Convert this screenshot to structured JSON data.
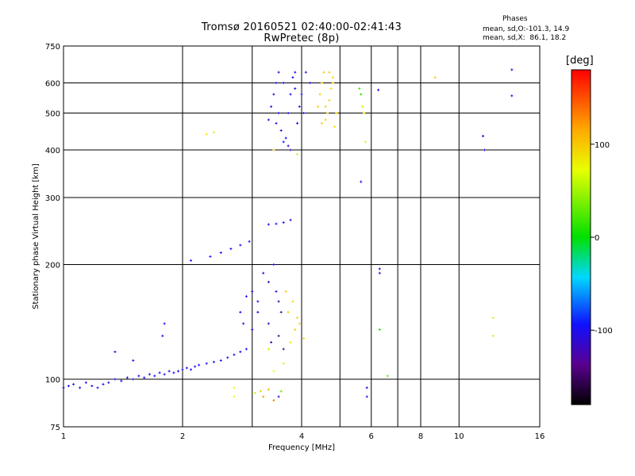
{
  "header": {
    "title_line1": "Tromsø 20160521 02:40:00-02:41:43",
    "title_line2": "RwPretec (8p)",
    "phases_heading": "Phases",
    "phases_o": "mean, sd,O:-101.3, 14.9",
    "phases_x": "mean, sd,X:  86.1, 18.2"
  },
  "colorbar": {
    "unit_label": "[deg]",
    "tick_labels": [
      "100",
      "0",
      "-100"
    ],
    "tick_values": [
      100,
      0,
      -100
    ],
    "range": [
      -180,
      180
    ],
    "colormap": "rainbow: black → purple → blue → cyan → green → yellow → orange → red"
  },
  "chart_data": {
    "type": "scatter",
    "xlabel": "Frequency [MHz]",
    "ylabel": "Stationary phase Virtual Height [km]",
    "xscale": "log",
    "yscale": "log",
    "xlim": [
      1,
      16
    ],
    "ylim": [
      75,
      750
    ],
    "xticks": [
      1,
      2,
      4,
      6,
      8,
      10,
      16
    ],
    "xtick_labels": [
      "1",
      "2",
      "4",
      "6",
      "8",
      "10",
      "16"
    ],
    "yticks": [
      75,
      100,
      200,
      300,
      400,
      500,
      600,
      750
    ],
    "ytick_labels": [
      "75",
      "100",
      "200",
      "300",
      "400",
      "500",
      "600",
      "750"
    ],
    "grid": true,
    "series": [
      {
        "points": [
          [
            1.0,
            95,
            -100
          ],
          [
            1.03,
            96,
            -100
          ],
          [
            1.06,
            97,
            -100
          ],
          [
            1.1,
            95,
            -100
          ],
          [
            1.14,
            98,
            -100
          ],
          [
            1.18,
            96,
            -100
          ],
          [
            1.22,
            95,
            -100
          ],
          [
            1.26,
            97,
            -100
          ],
          [
            1.3,
            98,
            -100
          ],
          [
            1.35,
            100,
            -100
          ],
          [
            1.4,
            99,
            -100
          ],
          [
            1.45,
            101,
            -100
          ],
          [
            1.5,
            100,
            -100
          ],
          [
            1.55,
            102,
            -100
          ],
          [
            1.6,
            101,
            -100
          ],
          [
            1.65,
            103,
            -100
          ],
          [
            1.7,
            102,
            -100
          ],
          [
            1.75,
            104,
            -100
          ],
          [
            1.8,
            103,
            -100
          ],
          [
            1.85,
            105,
            -100
          ],
          [
            1.9,
            104,
            -100
          ],
          [
            1.95,
            105,
            -100
          ],
          [
            2.0,
            106,
            -100
          ],
          [
            2.05,
            107,
            -100
          ],
          [
            2.1,
            106,
            -100
          ],
          [
            2.15,
            108,
            -100
          ],
          [
            2.2,
            109,
            -100
          ],
          [
            2.3,
            110,
            -100
          ],
          [
            2.4,
            111,
            -100
          ],
          [
            2.5,
            112,
            -100
          ],
          [
            2.6,
            114,
            -100
          ],
          [
            2.7,
            116,
            -100
          ],
          [
            2.8,
            118,
            -100
          ],
          [
            2.9,
            120,
            -100
          ],
          [
            1.78,
            130,
            -100
          ],
          [
            1.8,
            140,
            -100
          ],
          [
            1.35,
            118,
            -100
          ],
          [
            1.5,
            112,
            -100
          ],
          [
            2.35,
            210,
            -100
          ],
          [
            2.5,
            215,
            -100
          ],
          [
            2.65,
            220,
            -100
          ],
          [
            2.8,
            225,
            -100
          ],
          [
            2.95,
            230,
            -100
          ],
          [
            2.1,
            205,
            -100
          ],
          [
            3.3,
            255,
            -100
          ],
          [
            3.45,
            256,
            -100
          ],
          [
            3.6,
            258,
            -100
          ],
          [
            3.75,
            262,
            -100
          ],
          [
            2.8,
            150,
            -100
          ],
          [
            2.9,
            165,
            -100
          ],
          [
            3.0,
            170,
            -100
          ],
          [
            3.1,
            160,
            -100
          ],
          [
            2.85,
            140,
            -100
          ],
          [
            3.0,
            135,
            -100
          ],
          [
            3.3,
            180,
            -120
          ],
          [
            3.45,
            170,
            -120
          ],
          [
            3.5,
            160,
            -120
          ],
          [
            3.2,
            190,
            -100
          ],
          [
            3.1,
            150,
            -100
          ],
          [
            3.4,
            200,
            -100
          ],
          [
            3.55,
            150,
            -120
          ],
          [
            3.3,
            140,
            -120
          ],
          [
            3.35,
            125,
            -130
          ],
          [
            3.5,
            130,
            -130
          ],
          [
            3.6,
            120,
            -130
          ],
          [
            3.7,
            150,
            95
          ],
          [
            3.8,
            160,
            95
          ],
          [
            3.9,
            145,
            95
          ],
          [
            3.85,
            135,
            95
          ],
          [
            3.65,
            170,
            95
          ],
          [
            3.75,
            125,
            80
          ],
          [
            3.6,
            110,
            80
          ],
          [
            3.4,
            105,
            70
          ],
          [
            3.3,
            120,
            60
          ],
          [
            3.95,
            140,
            90
          ],
          [
            4.05,
            128,
            90
          ],
          [
            3.3,
            480,
            -100
          ],
          [
            3.35,
            520,
            -100
          ],
          [
            3.4,
            560,
            -100
          ],
          [
            3.45,
            600,
            -100
          ],
          [
            3.5,
            640,
            -100
          ],
          [
            3.55,
            450,
            -100
          ],
          [
            3.6,
            420,
            -100
          ],
          [
            3.65,
            430,
            -100
          ],
          [
            3.7,
            500,
            -100
          ],
          [
            3.75,
            560,
            -100
          ],
          [
            3.8,
            620,
            -100
          ],
          [
            3.85,
            640,
            -100
          ],
          [
            3.9,
            470,
            -100
          ],
          [
            3.95,
            520,
            -100
          ],
          [
            4.0,
            560,
            -100
          ],
          [
            3.6,
            600,
            -100
          ],
          [
            3.5,
            500,
            -100
          ],
          [
            3.7,
            410,
            -120
          ],
          [
            3.75,
            400,
            -120
          ],
          [
            3.45,
            470,
            -100
          ],
          [
            3.85,
            580,
            -100
          ],
          [
            4.05,
            500,
            -100
          ],
          [
            4.1,
            640,
            -100
          ],
          [
            4.2,
            600,
            -100
          ],
          [
            3.4,
            400,
            90
          ],
          [
            3.9,
            390,
            80
          ],
          [
            4.4,
            520,
            95
          ],
          [
            4.45,
            560,
            95
          ],
          [
            4.5,
            600,
            95
          ],
          [
            4.55,
            640,
            95
          ],
          [
            4.6,
            480,
            95
          ],
          [
            4.65,
            500,
            90
          ],
          [
            4.7,
            540,
            90
          ],
          [
            4.75,
            580,
            90
          ],
          [
            4.8,
            620,
            90
          ],
          [
            4.85,
            460,
            90
          ],
          [
            4.5,
            470,
            90
          ],
          [
            4.6,
            520,
            95
          ],
          [
            4.7,
            640,
            95
          ],
          [
            4.8,
            600,
            95
          ],
          [
            4.9,
            500,
            90
          ],
          [
            5.6,
            580,
            20
          ],
          [
            5.65,
            560,
            10
          ],
          [
            5.7,
            520,
            60
          ],
          [
            5.75,
            500,
            80
          ],
          [
            5.8,
            420,
            80
          ],
          [
            5.65,
            330,
            -100
          ],
          [
            6.25,
            575,
            -100
          ],
          [
            6.3,
            195,
            -100
          ],
          [
            6.3,
            190,
            -100
          ],
          [
            5.85,
            95,
            -100
          ],
          [
            5.85,
            90,
            -100
          ],
          [
            6.3,
            135,
            10
          ],
          [
            6.6,
            102,
            30
          ],
          [
            8.7,
            620,
            95
          ],
          [
            11.5,
            435,
            -100
          ],
          [
            11.6,
            400,
            -100
          ],
          [
            12.2,
            145,
            80
          ],
          [
            12.2,
            130,
            85
          ],
          [
            13.6,
            650,
            -110
          ],
          [
            13.6,
            555,
            -100
          ],
          [
            2.4,
            445,
            80
          ],
          [
            2.3,
            440,
            80
          ],
          [
            2.7,
            95,
            70
          ],
          [
            2.7,
            90,
            70
          ],
          [
            3.05,
            92,
            60
          ],
          [
            3.15,
            93,
            100
          ],
          [
            3.3,
            94,
            110
          ],
          [
            3.55,
            93,
            30
          ],
          [
            3.5,
            90,
            -110
          ],
          [
            3.2,
            90,
            120
          ],
          [
            3.4,
            88,
            130
          ]
        ]
      }
    ]
  }
}
